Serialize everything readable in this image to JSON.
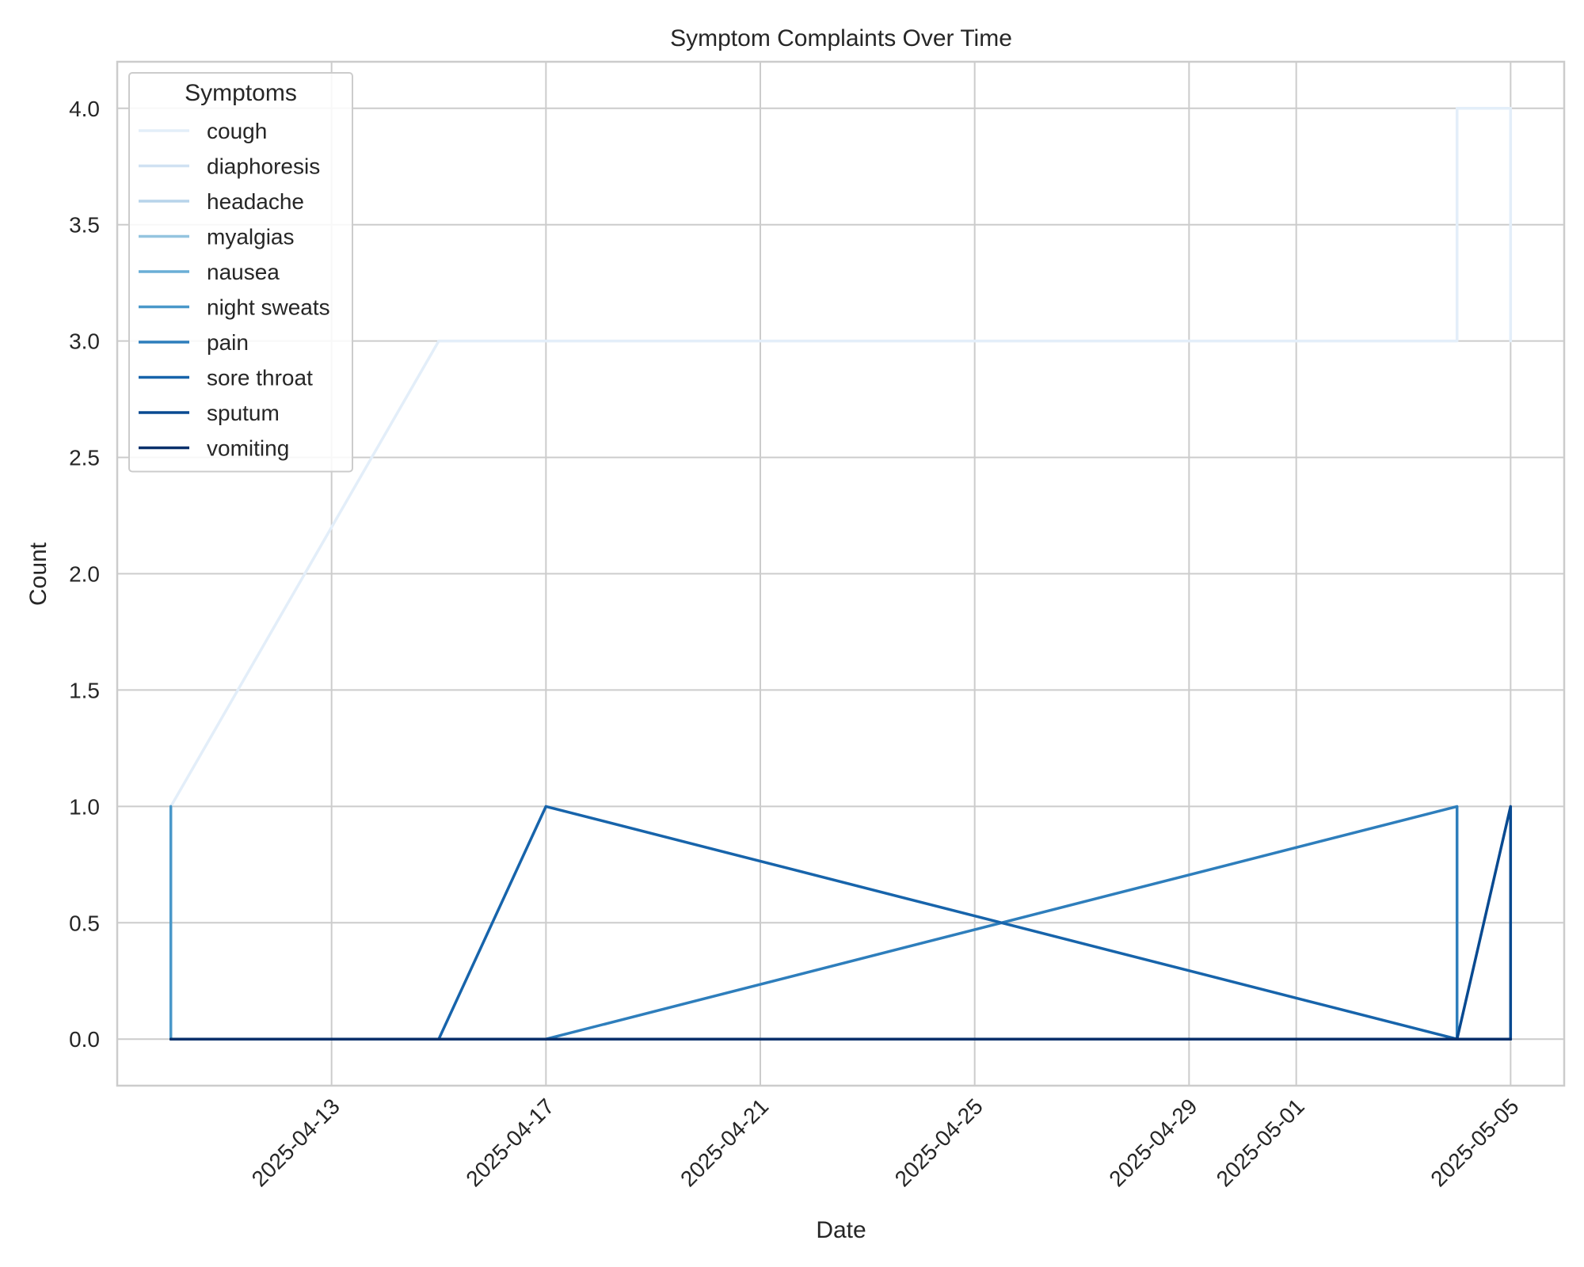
{
  "chart_data": {
    "type": "line",
    "title": "Symptom Complaints Over Time",
    "xlabel": "Date",
    "ylabel": "Count",
    "xlim": [
      "2025-04-09",
      "2025-05-06"
    ],
    "ylim": [
      -0.2,
      4.2
    ],
    "yticks": [
      0.0,
      0.5,
      1.0,
      1.5,
      2.0,
      2.5,
      3.0,
      3.5,
      4.0
    ],
    "ytick_labels": [
      "0.0",
      "0.5",
      "1.0",
      "1.5",
      "2.0",
      "2.5",
      "3.0",
      "3.5",
      "4.0"
    ],
    "xticks": [
      "2025-04-13",
      "2025-04-17",
      "2025-04-21",
      "2025-04-25",
      "2025-04-29",
      "2025-05-01",
      "2025-05-05"
    ],
    "xtick_labels": [
      "2025-04-13",
      "2025-04-17",
      "2025-04-21",
      "2025-04-25",
      "2025-04-29",
      "2025-05-01",
      "2025-05-05"
    ],
    "grid": true,
    "legend": {
      "title": "Symptoms",
      "placement": "upper-left"
    },
    "series": [
      {
        "name": "cough",
        "color": "#e3eef9",
        "points": [
          [
            "2025-04-10",
            1
          ],
          [
            "2025-04-15",
            3
          ],
          [
            "2025-05-04",
            3
          ],
          [
            "2025-05-04",
            4
          ],
          [
            "2025-05-05",
            4
          ],
          [
            "2025-05-05",
            3
          ]
        ]
      },
      {
        "name": "diaphoresis",
        "color": "#d0e1f2",
        "points": [
          [
            "2025-04-10",
            0
          ],
          [
            "2025-05-05",
            0
          ]
        ]
      },
      {
        "name": "headache",
        "color": "#b7d4ea",
        "points": [
          [
            "2025-04-10",
            0
          ],
          [
            "2025-05-05",
            0
          ]
        ]
      },
      {
        "name": "myalgias",
        "color": "#94c4df",
        "points": [
          [
            "2025-04-10",
            0
          ],
          [
            "2025-05-05",
            0
          ]
        ]
      },
      {
        "name": "nausea",
        "color": "#6aaed6",
        "points": [
          [
            "2025-04-10",
            0
          ],
          [
            "2025-05-05",
            0
          ]
        ]
      },
      {
        "name": "night sweats",
        "color": "#4a98c9",
        "points": [
          [
            "2025-04-10",
            1
          ],
          [
            "2025-04-10",
            0
          ],
          [
            "2025-05-05",
            0
          ]
        ]
      },
      {
        "name": "pain",
        "color": "#2e7ebc",
        "points": [
          [
            "2025-04-10",
            0
          ],
          [
            "2025-04-17",
            0
          ],
          [
            "2025-05-04",
            1
          ],
          [
            "2025-05-04",
            0
          ],
          [
            "2025-05-05",
            0
          ]
        ]
      },
      {
        "name": "sore throat",
        "color": "#1764ab",
        "points": [
          [
            "2025-04-10",
            0
          ],
          [
            "2025-04-15",
            0
          ],
          [
            "2025-04-17",
            1
          ],
          [
            "2025-05-04",
            0
          ],
          [
            "2025-05-05",
            0
          ]
        ]
      },
      {
        "name": "sputum",
        "color": "#084a91",
        "points": [
          [
            "2025-04-10",
            0
          ],
          [
            "2025-05-04",
            0
          ],
          [
            "2025-05-05",
            1
          ],
          [
            "2025-05-05",
            0
          ]
        ]
      },
      {
        "name": "vomiting",
        "color": "#08306b",
        "points": [
          [
            "2025-04-10",
            0
          ],
          [
            "2025-05-05",
            0
          ]
        ]
      }
    ]
  }
}
